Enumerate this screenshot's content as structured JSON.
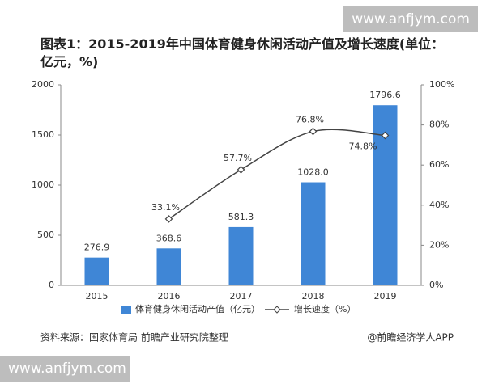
{
  "chart_data": {
    "type": "bar",
    "title": "图表1：2015-2019年中国体育健身休闲活动产值及增长速度(单位：亿元，%)",
    "categories": [
      "2015",
      "2016",
      "2017",
      "2018",
      "2019"
    ],
    "series": [
      {
        "name": "体育健身休闲活动产值（亿元）",
        "type": "bar",
        "color": "#3f86d6",
        "values": [
          276.9,
          368.6,
          581.3,
          1028.0,
          1796.6
        ],
        "value_labels": [
          "276.9",
          "368.6",
          "581.3",
          "1028.0",
          "1796.6"
        ]
      },
      {
        "name": "增长速度（%）",
        "type": "line",
        "axis": "y2",
        "color": "#444444",
        "values": [
          null,
          33.1,
          57.7,
          76.8,
          74.8
        ],
        "value_labels": [
          null,
          "33.1%",
          "57.7%",
          "76.8%",
          "74.8%"
        ]
      }
    ],
    "ylim": [
      0,
      2000
    ],
    "yticks": [
      0,
      500,
      1000,
      1500,
      2000
    ],
    "y2lim": [
      0,
      100
    ],
    "y2ticks": [
      {
        "value": 0,
        "label": "0%"
      },
      {
        "value": 20,
        "label": "20%"
      },
      {
        "value": 40,
        "label": "40%"
      },
      {
        "value": 60,
        "label": "60%"
      },
      {
        "value": 80,
        "label": "80%"
      },
      {
        "value": 100,
        "label": "100%"
      }
    ],
    "source": "资料来源：国家体育局 前瞻产业研究院整理",
    "credit": "@前瞻经济学人APP",
    "watermarks": [
      "www.anfjym.com",
      "www.anfjym.com"
    ]
  }
}
